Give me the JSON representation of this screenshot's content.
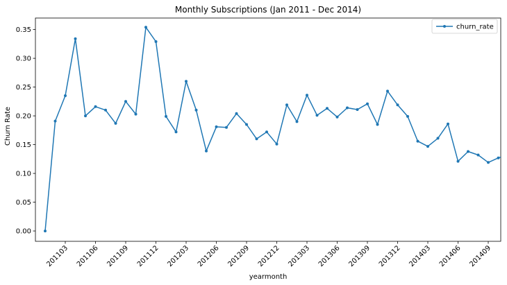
{
  "chart_data": {
    "type": "line",
    "title": "Monthly Subscriptions (Jan 2011 - Dec 2014)",
    "xlabel": "yearmonth",
    "ylabel": "Churn Rate",
    "ylim": [
      -0.018,
      0.37
    ],
    "yticks": [
      0.0,
      0.05,
      0.1,
      0.15,
      0.2,
      0.25,
      0.3,
      0.35
    ],
    "ytick_labels": [
      "0.00",
      "0.05",
      "0.10",
      "0.15",
      "0.20",
      "0.25",
      "0.30",
      "0.35"
    ],
    "xtick_labels": [
      "201103",
      "201106",
      "201109",
      "201112",
      "201203",
      "201206",
      "201209",
      "201212",
      "201303",
      "201306",
      "201309",
      "201312",
      "201403",
      "201406",
      "201409"
    ],
    "grid": false,
    "legend": {
      "position": "top-right",
      "entries": [
        "churn_rate"
      ]
    },
    "color": "#1f77b4",
    "categories": [
      "201101",
      "201102",
      "201103",
      "201104",
      "201105",
      "201106",
      "201107",
      "201108",
      "201109",
      "201110",
      "201111",
      "201112",
      "201201",
      "201202",
      "201203",
      "201204",
      "201205",
      "201206",
      "201207",
      "201208",
      "201209",
      "201210",
      "201211",
      "201212",
      "201301",
      "201302",
      "201303",
      "201304",
      "201305",
      "201306",
      "201307",
      "201308",
      "201309",
      "201310",
      "201311",
      "201312",
      "201401",
      "201402",
      "201403",
      "201404",
      "201405",
      "201406",
      "201407",
      "201408",
      "201409",
      "201410",
      "201411"
    ],
    "series": [
      {
        "name": "churn_rate",
        "values": [
          0.0,
          0.191,
          0.235,
          0.334,
          0.2,
          0.216,
          0.21,
          0.187,
          0.225,
          0.203,
          0.354,
          0.329,
          0.199,
          0.172,
          0.26,
          0.21,
          0.139,
          0.181,
          0.18,
          0.204,
          0.185,
          0.16,
          0.172,
          0.151,
          0.219,
          0.19,
          0.236,
          0.201,
          0.213,
          0.198,
          0.214,
          0.211,
          0.221,
          0.185,
          0.243,
          0.219,
          0.199,
          0.156,
          0.147,
          0.161,
          0.186,
          0.121,
          0.138,
          0.132,
          0.119,
          0.127,
          0.133
        ]
      }
    ]
  }
}
